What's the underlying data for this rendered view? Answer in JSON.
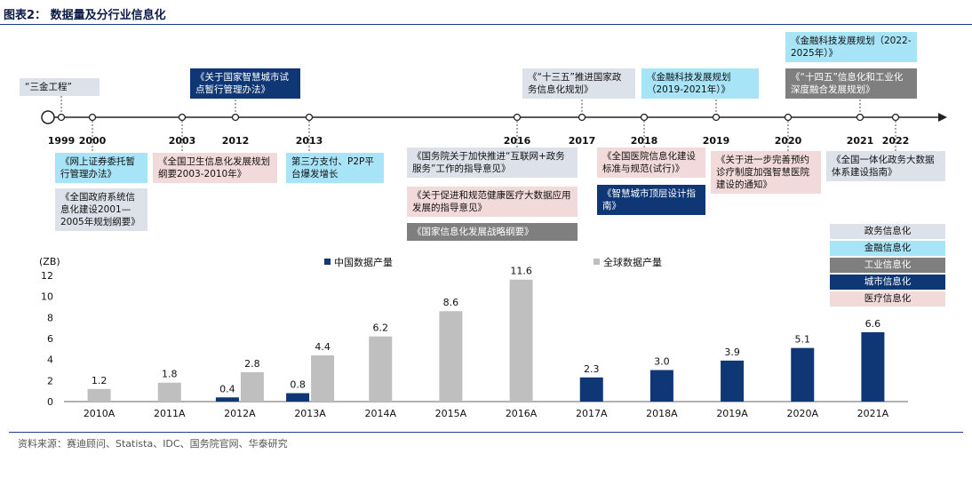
{
  "title": "图表2： 数据量及分行业信息化",
  "source": "资料来源：赛迪顾问、Statista、IDC、国务院官网、华泰研究",
  "colors": {
    "china": "#0f3775",
    "global": "#bfbfbf",
    "gov": "#dde2ea",
    "fin": "#a7e4f7",
    "ind": "#7f7f7f",
    "city": "#0f3775",
    "med": "#f3dada"
  },
  "timeline": {
    "years": [
      "1999",
      "2000",
      "2003",
      "2012",
      "2013",
      "2016",
      "2017",
      "2018",
      "2019",
      "2020",
      "2021",
      "2022"
    ],
    "events": [
      {
        "text": "“三金工程”",
        "cat": "gov"
      },
      {
        "text": "《关于国家智慧城市试点暂行管理办法》",
        "cat": "city"
      },
      {
        "text": "《“十三五”推进国家政务信息化规划》",
        "cat": "gov"
      },
      {
        "text": "《金融科技发展规划（2019-2021年）》",
        "cat": "fin"
      },
      {
        "text": "《金融科技发展规划（2022-2025年）》",
        "cat": "fin"
      },
      {
        "text": "《“十四五”信息化和工业化深度融合发展规划》",
        "cat": "ind"
      },
      {
        "text": "《网上证券委托暂行管理办法》",
        "cat": "fin"
      },
      {
        "text": "《全国政府系统信息化建设2001—2005年规划纲要》",
        "cat": "gov"
      },
      {
        "text": "《全国卫生信息化发展规划纲要2003-2010年》",
        "cat": "med"
      },
      {
        "text": "第三方支付、P2P平台爆发增长",
        "cat": "fin"
      },
      {
        "text": "《国务院关于加快推进“互联网+政务服务”工作的指导意见》",
        "cat": "gov"
      },
      {
        "text": "《关于促进和规范健康医疗大数据应用发展的指导意见》",
        "cat": "med"
      },
      {
        "text": "《国家信息化发展战略纲要》",
        "cat": "ind"
      },
      {
        "text": "《全国医院信息化建设标准与规范(试行)》",
        "cat": "med"
      },
      {
        "text": "《智慧城市顶层设计指南》",
        "cat": "city"
      },
      {
        "text": "《关于进一步完善预约诊疗制度加强智慧医院建设的通知》",
        "cat": "med"
      },
      {
        "text": "《全国一体化政务大数据体系建设指南》",
        "cat": "gov"
      }
    ]
  },
  "category_legend": [
    {
      "label": "政务信息化",
      "cat": "gov"
    },
    {
      "label": "金融信息化",
      "cat": "fin"
    },
    {
      "label": "工业信息化",
      "cat": "ind"
    },
    {
      "label": "城市信息化",
      "cat": "city"
    },
    {
      "label": "医疗信息化",
      "cat": "med"
    }
  ],
  "chart_data": {
    "type": "bar",
    "ylabel": "(ZB)",
    "ylim": [
      0,
      12
    ],
    "yticks": [
      0,
      2,
      4,
      6,
      8,
      10,
      12
    ],
    "grid": false,
    "legend": "top",
    "categories": [
      "2010A",
      "2011A",
      "2012A",
      "2013A",
      "2014A",
      "2015A",
      "2016A",
      "2017A",
      "2018A",
      "2019A",
      "2020A",
      "2021A"
    ],
    "series": [
      {
        "name": "中国数据产量",
        "values": [
          null,
          null,
          0.4,
          0.8,
          null,
          null,
          null,
          2.3,
          3.0,
          3.9,
          5.1,
          6.6
        ],
        "labels": [
          "",
          "",
          "0.4",
          "0.8",
          "",
          "",
          "",
          "2.3",
          "3.0",
          "3.9",
          "5.1",
          "6.6"
        ]
      },
      {
        "name": "全球数据产量",
        "values": [
          1.2,
          1.8,
          2.8,
          4.4,
          6.2,
          8.6,
          11.6,
          null,
          null,
          null,
          null,
          null
        ],
        "labels": [
          "1.2",
          "1.8",
          "2.8",
          "4.4",
          "6.2",
          "8.6",
          "11.6",
          "",
          "",
          "",
          "",
          ""
        ]
      }
    ]
  }
}
